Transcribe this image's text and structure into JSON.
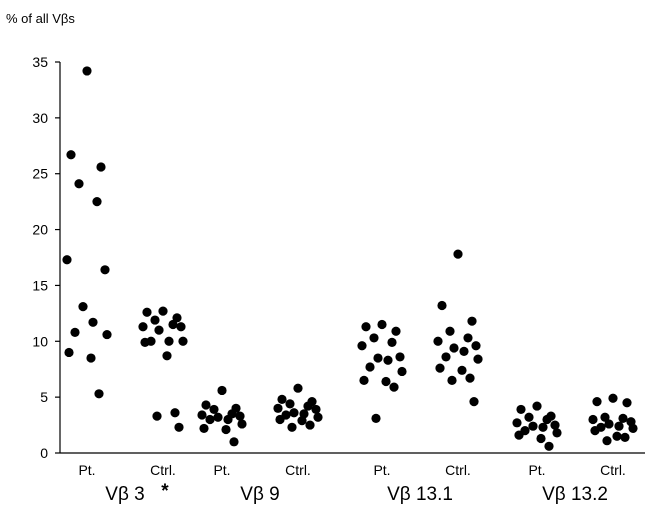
{
  "chart_data": {
    "type": "scatter",
    "title": "",
    "ylabel": "% of all Vβs",
    "ylim": [
      0,
      35
    ],
    "yticks": [
      0,
      5,
      10,
      15,
      20,
      25,
      30,
      35
    ],
    "grid": false,
    "legend": "none",
    "groups": [
      {
        "label": "Vβ 3",
        "marker": "*",
        "series": [
          {
            "name": "Pt.",
            "values": [
              34.2,
              26.7,
              25.6,
              24.1,
              22.5,
              17.3,
              16.4,
              13.1,
              11.7,
              10.8,
              10.6,
              9.0,
              8.5,
              5.3
            ]
          },
          {
            "name": "Ctrl.",
            "values": [
              12.7,
              12.6,
              12.1,
              11.9,
              11.5,
              11.3,
              11.3,
              11.0,
              10.0,
              10.0,
              10.0,
              9.9,
              8.7,
              3.6,
              3.3,
              2.3
            ]
          }
        ]
      },
      {
        "label": "Vβ 9",
        "marker": "",
        "series": [
          {
            "name": "Pt.",
            "values": [
              5.6,
              4.3,
              4.0,
              3.9,
              3.5,
              3.4,
              3.3,
              3.2,
              3.0,
              3.0,
              2.6,
              2.2,
              2.1,
              1.0
            ]
          },
          {
            "name": "Ctrl.",
            "values": [
              5.8,
              4.8,
              4.6,
              4.4,
              4.2,
              4.0,
              3.9,
              3.6,
              3.5,
              3.4,
              3.2,
              3.0,
              2.9,
              2.5,
              2.3
            ]
          }
        ]
      },
      {
        "label": "Vβ 13.1",
        "marker": "",
        "series": [
          {
            "name": "Pt.",
            "values": [
              11.5,
              11.3,
              10.9,
              10.3,
              9.9,
              9.6,
              8.6,
              8.5,
              8.3,
              7.7,
              7.3,
              6.5,
              6.4,
              5.9,
              3.1
            ]
          },
          {
            "name": "Ctrl.",
            "values": [
              17.8,
              13.2,
              11.8,
              10.9,
              10.3,
              10.0,
              9.6,
              9.4,
              9.1,
              8.6,
              8.4,
              7.6,
              7.4,
              6.7,
              6.5,
              4.6
            ]
          }
        ]
      },
      {
        "label": "Vβ 13.2",
        "marker": "",
        "series": [
          {
            "name": "Pt.",
            "values": [
              4.2,
              3.9,
              3.3,
              3.2,
              3.0,
              2.7,
              2.5,
              2.4,
              2.3,
              2.0,
              1.8,
              1.6,
              1.3,
              0.6
            ]
          },
          {
            "name": "Ctrl.",
            "values": [
              4.9,
              4.6,
              4.5,
              3.2,
              3.1,
              3.0,
              2.8,
              2.6,
              2.4,
              2.3,
              2.2,
              2.0,
              1.5,
              1.4,
              1.1
            ]
          }
        ]
      }
    ]
  }
}
